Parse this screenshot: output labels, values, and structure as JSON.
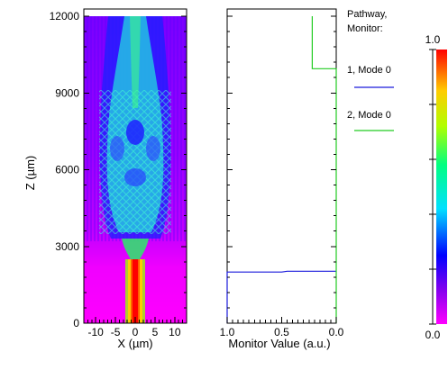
{
  "field_plot": {
    "ylabel": "Z (µm)",
    "xlabel": "X (µm)",
    "y_ticks": [
      "0",
      "3000",
      "6000",
      "9000",
      "12000"
    ],
    "x_ticks": [
      "-10",
      "-5",
      "0",
      "5",
      "10"
    ]
  },
  "monitor_plot": {
    "xlabel": "Monitor Value (a.u.)",
    "x_ticks": [
      "1.0",
      "0.5",
      "0.0"
    ]
  },
  "legend": {
    "header_line1": "Pathway,",
    "header_line2": "Monitor:",
    "entries": [
      {
        "label": "1, Mode 0",
        "color": "#1a1adc"
      },
      {
        "label": "2, Mode 0",
        "color": "#22cc22"
      }
    ]
  },
  "colorbar": {
    "max_label": "1.0",
    "min_label": "0.0"
  },
  "chart_data": [
    {
      "type": "heatmap",
      "description_of_axes": "field intensity vs X and Z",
      "xlabel": "X (µm)",
      "ylabel": "Z (µm)",
      "xlim": [
        -13,
        13
      ],
      "ylim": [
        0,
        12000
      ],
      "x_ticks": [
        -10,
        -5,
        0,
        5,
        10
      ],
      "y_ticks": [
        0,
        3000,
        6000,
        9000,
        12000
      ],
      "color_scale": [
        0,
        1
      ]
    },
    {
      "type": "line",
      "xlabel": "Monitor Value (a.u.)",
      "ylabel": "Z (µm)",
      "x_reversed": true,
      "xlim": [
        1.0,
        0.0
      ],
      "ylim": [
        0,
        12000
      ],
      "series": [
        {
          "name": "1, Mode 0",
          "color": "#1a1adc",
          "x": [
            1.0,
            1.0,
            0.5,
            0.45,
            0.0
          ],
          "y": [
            0,
            2000,
            2000,
            2030,
            2030
          ]
        },
        {
          "name": "2, Mode 0",
          "color": "#22cc22",
          "x": [
            0.0,
            0.0,
            0.22,
            0.22
          ],
          "y": [
            0,
            9950,
            9950,
            12000
          ]
        }
      ]
    }
  ]
}
